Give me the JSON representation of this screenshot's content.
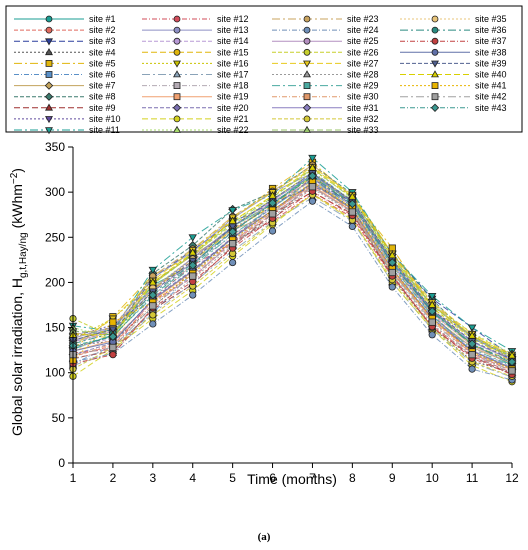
{
  "caption": "(a)",
  "chart_data": {
    "type": "line",
    "title": "",
    "xlabel": "Time (months)",
    "ylabel_main": "Global solar irradiation, H",
    "ylabel_sub": "g,t,Hay/ng",
    "ylabel_unit": "(kWhm",
    "ylabel_sup": "−2",
    "ylabel_end": ")",
    "xlim": [
      1,
      12
    ],
    "ylim": [
      0,
      350
    ],
    "x_ticks": [
      "1",
      "2",
      "3",
      "4",
      "5",
      "6",
      "7",
      "8",
      "9",
      "10",
      "11",
      "12"
    ],
    "y_ticks": [
      "0",
      "50",
      "100",
      "150",
      "200",
      "250",
      "300",
      "350"
    ],
    "grid": false,
    "legend_position": "top",
    "series": [
      {
        "name": "site #1",
        "color": "#1a9e93",
        "marker": "circle",
        "values": [
          126,
          142,
          197,
          220,
          262,
          287,
          320,
          288,
          223,
          168,
          132,
          108
        ]
      },
      {
        "name": "site #2",
        "color": "#e06a5f",
        "marker": "circle",
        "values": [
          118,
          130,
          180,
          205,
          245,
          276,
          305,
          279,
          212,
          160,
          121,
          102
        ]
      },
      {
        "name": "site #3",
        "color": "#2b3f9e",
        "marker": "triangle-down",
        "values": [
          146,
          142,
          205,
          236,
          267,
          288,
          306,
          291,
          232,
          182,
          150,
          118
        ]
      },
      {
        "name": "site #4",
        "color": "#555555",
        "marker": "triangle",
        "values": [
          130,
          135,
          172,
          213,
          245,
          269,
          312,
          282,
          205,
          150,
          113,
          100
        ]
      },
      {
        "name": "site #5",
        "color": "#e0b50a",
        "marker": "square",
        "values": [
          126,
          162,
          208,
          230,
          270,
          304,
          333,
          294,
          238,
          172,
          139,
          113
        ]
      },
      {
        "name": "site #6",
        "color": "#5a90c8",
        "marker": "square",
        "values": [
          110,
          130,
          166,
          211,
          249,
          285,
          323,
          290,
          220,
          163,
          124,
          107
        ]
      },
      {
        "name": "site #7",
        "color": "#c2a25c",
        "marker": "diamond",
        "values": [
          136,
          148,
          200,
          230,
          258,
          276,
          318,
          276,
          210,
          162,
          128,
          110
        ]
      },
      {
        "name": "site #8",
        "color": "#3c7a6e",
        "marker": "diamond",
        "values": [
          128,
          140,
          210,
          241,
          281,
          300,
          330,
          298,
          231,
          181,
          138,
          118
        ]
      },
      {
        "name": "site #9",
        "color": "#9e2f2f",
        "marker": "triangle",
        "values": [
          116,
          124,
          170,
          198,
          240,
          276,
          300,
          276,
          208,
          150,
          118,
          98
        ]
      },
      {
        "name": "site #10",
        "color": "#5f4a9e",
        "marker": "triangle-down",
        "values": [
          140,
          153,
          192,
          226,
          260,
          284,
          315,
          286,
          219,
          168,
          142,
          114
        ]
      },
      {
        "name": "site #11",
        "color": "#1a9e93",
        "marker": "triangle-down",
        "values": [
          152,
          146,
          214,
          250,
          280,
          297,
          338,
          300,
          231,
          185,
          150,
          124
        ]
      },
      {
        "name": "site #12",
        "color": "#d24c5a",
        "marker": "circle",
        "values": [
          122,
          126,
          182,
          219,
          244,
          268,
          298,
          272,
          206,
          152,
          119,
          100
        ]
      },
      {
        "name": "site #13",
        "color": "#8d8fc4",
        "marker": "circle",
        "values": [
          135,
          150,
          205,
          234,
          271,
          300,
          321,
          290,
          225,
          175,
          139,
          116
        ]
      },
      {
        "name": "site #14",
        "color": "#b89ad6",
        "marker": "circle",
        "values": [
          128,
          138,
          178,
          206,
          246,
          279,
          306,
          278,
          213,
          162,
          125,
          105
        ]
      },
      {
        "name": "site #15",
        "color": "#e0b50a",
        "marker": "circle",
        "values": [
          144,
          138,
          192,
          224,
          258,
          285,
          318,
          286,
          225,
          170,
          131,
          113
        ]
      },
      {
        "name": "site #16",
        "color": "#c9c200",
        "marker": "triangle-down",
        "values": [
          137,
          160,
          199,
          232,
          268,
          295,
          325,
          294,
          228,
          175,
          140,
          117
        ]
      },
      {
        "name": "site #17",
        "color": "#8aa3b8",
        "marker": "triangle",
        "values": [
          108,
          122,
          166,
          199,
          235,
          267,
          294,
          268,
          200,
          148,
          111,
          95
        ]
      },
      {
        "name": "site #18",
        "color": "#b3aab3",
        "marker": "square",
        "values": [
          132,
          147,
          186,
          220,
          252,
          285,
          310,
          282,
          217,
          160,
          128,
          106
        ]
      },
      {
        "name": "site #19",
        "color": "#f0a070",
        "marker": "square",
        "values": [
          124,
          136,
          180,
          212,
          250,
          280,
          307,
          279,
          214,
          158,
          124,
          104
        ]
      },
      {
        "name": "site #20",
        "color": "#7a6fb0",
        "marker": "diamond",
        "values": [
          120,
          133,
          182,
          214,
          250,
          283,
          315,
          286,
          218,
          165,
          122,
          104
        ]
      },
      {
        "name": "site #21",
        "color": "#d4d11e",
        "marker": "circle",
        "values": [
          96,
          126,
          160,
          191,
          229,
          264,
          298,
          270,
          200,
          148,
          108,
          90
        ]
      },
      {
        "name": "site #22",
        "color": "#a6d96a",
        "marker": "triangle",
        "values": [
          150,
          138,
          194,
          227,
          262,
          288,
          318,
          292,
          227,
          176,
          144,
          121
        ]
      },
      {
        "name": "site #23",
        "color": "#c9a35e",
        "marker": "circle",
        "values": [
          142,
          150,
          207,
          237,
          273,
          301,
          330,
          296,
          231,
          177,
          141,
          119
        ]
      },
      {
        "name": "site #24",
        "color": "#6f8fb8",
        "marker": "circle",
        "values": [
          112,
          121,
          154,
          186,
          222,
          257,
          290,
          262,
          195,
          142,
          104,
          92
        ]
      },
      {
        "name": "site #25",
        "color": "#b48fc0",
        "marker": "circle",
        "values": [
          134,
          146,
          190,
          222,
          256,
          290,
          312,
          285,
          220,
          166,
          130,
          110
        ]
      },
      {
        "name": "site #26",
        "color": "#c7cf2c",
        "marker": "circle",
        "values": [
          160,
          140,
          198,
          231,
          264,
          292,
          322,
          289,
          226,
          172,
          137,
          117
        ]
      },
      {
        "name": "site #27",
        "color": "#e8c91c",
        "marker": "triangle-down",
        "values": [
          130,
          160,
          202,
          236,
          272,
          300,
          328,
          297,
          232,
          178,
          143,
          120
        ]
      },
      {
        "name": "site #28",
        "color": "#9a9a9a",
        "marker": "triangle",
        "values": [
          115,
          126,
          170,
          204,
          241,
          273,
          304,
          277,
          209,
          154,
          118,
          100
        ]
      },
      {
        "name": "site #29",
        "color": "#4aa9a0",
        "marker": "square",
        "values": [
          128,
          141,
          184,
          217,
          253,
          283,
          314,
          284,
          218,
          163,
          126,
          108
        ]
      },
      {
        "name": "site #30",
        "color": "#e0986a",
        "marker": "square",
        "values": [
          118,
          132,
          176,
          209,
          245,
          278,
          309,
          280,
          213,
          157,
          121,
          103
        ]
      },
      {
        "name": "site #31",
        "color": "#8a7fc0",
        "marker": "diamond",
        "values": [
          138,
          151,
          193,
          227,
          262,
          291,
          319,
          289,
          223,
          169,
          134,
          114
        ]
      },
      {
        "name": "site #32",
        "color": "#d4c838",
        "marker": "circle",
        "values": [
          104,
          128,
          164,
          196,
          232,
          266,
          297,
          269,
          203,
          150,
          112,
          96
        ]
      },
      {
        "name": "site #33",
        "color": "#98c46a",
        "marker": "triangle",
        "values": [
          146,
          144,
          198,
          231,
          266,
          294,
          326,
          293,
          228,
          174,
          140,
          118
        ]
      },
      {
        "name": "site #35",
        "color": "#e8c47a",
        "marker": "circle",
        "values": [
          122,
          152,
          194,
          226,
          259,
          287,
          312,
          283,
          219,
          165,
          130,
          110
        ]
      },
      {
        "name": "site #36",
        "color": "#2a8a80",
        "marker": "circle",
        "values": [
          132,
          144,
          188,
          221,
          257,
          287,
          317,
          286,
          221,
          167,
          131,
          111
        ]
      },
      {
        "name": "site #37",
        "color": "#c24040",
        "marker": "circle",
        "values": [
          110,
          120,
          172,
          201,
          238,
          271,
          301,
          274,
          207,
          151,
          116,
          98
        ]
      },
      {
        "name": "site #38",
        "color": "#6070a8",
        "marker": "circle",
        "values": [
          124,
          134,
          181,
          213,
          249,
          280,
          310,
          281,
          215,
          160,
          124,
          105
        ]
      },
      {
        "name": "site #39",
        "color": "#506090",
        "marker": "triangle-down",
        "values": [
          136,
          148,
          190,
          224,
          262,
          292,
          321,
          290,
          225,
          170,
          135,
          115
        ]
      },
      {
        "name": "site #40",
        "color": "#d8d000",
        "marker": "triangle",
        "values": [
          142,
          142,
          200,
          233,
          268,
          296,
          327,
          295,
          230,
          175,
          141,
          119
        ]
      },
      {
        "name": "site #41",
        "color": "#e8b400",
        "marker": "square",
        "values": [
          114,
          156,
          178,
          210,
          247,
          280,
          311,
          282,
          215,
          160,
          123,
          104
        ]
      },
      {
        "name": "site #42",
        "color": "#a0a0a0",
        "marker": "square",
        "values": [
          120,
          128,
          174,
          207,
          243,
          276,
          306,
          278,
          211,
          156,
          120,
          102
        ]
      },
      {
        "name": "site #43",
        "color": "#3a9890",
        "marker": "diamond",
        "values": [
          130,
          140,
          186,
          219,
          256,
          288,
          318,
          287,
          222,
          168,
          132,
          112
        ]
      }
    ]
  }
}
